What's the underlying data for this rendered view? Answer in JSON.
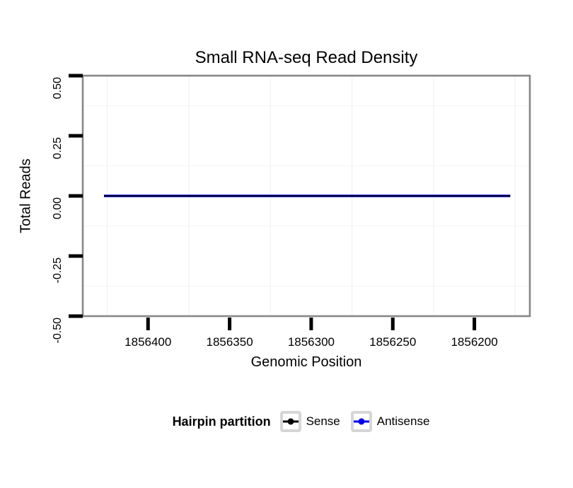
{
  "page": {
    "background": "#ffffff"
  },
  "chart_data": {
    "type": "line",
    "title": "Small RNA-seq Read Density",
    "xlabel": "Genomic Position",
    "ylabel": "Total Reads",
    "x_reversed": true,
    "xlim": [
      1856440,
      1856166
    ],
    "ylim": [
      -0.5,
      0.5
    ],
    "xticks": [
      1856400,
      1856350,
      1856300,
      1856250,
      1856200
    ],
    "xtick_labels": [
      "1856400",
      "1856350",
      "1856300",
      "1856250",
      "1856200"
    ],
    "yticks": [
      0.5,
      0.25,
      0,
      -0.25,
      -0.5
    ],
    "ytick_labels": [
      "0.50",
      "0.25",
      "0.00",
      "-0.25",
      "-0.50"
    ],
    "x_minor_gridlines": [
      1856425,
      1856375,
      1856325,
      1856275,
      1856225,
      1856175
    ],
    "y_minor_gridlines": [
      0.375,
      0.125,
      -0.125,
      -0.375
    ],
    "grid": "minor-only",
    "legend_position": "bottom",
    "series": [
      {
        "name": "Sense",
        "color": "#000000",
        "x_start": 1856427,
        "x_end": 1856178,
        "y_constant": 0
      },
      {
        "name": "Antisense",
        "color": "#0000ee",
        "x_start": 1856427,
        "x_end": 1856178,
        "y_constant": 0
      }
    ],
    "panel_border_color": "#878787",
    "grid_color": "#f4f4f4",
    "tick_color": "#000000",
    "text_color": "#000000"
  },
  "legend": {
    "title": "Hairpin partition",
    "items": [
      {
        "label": "Sense",
        "color": "#000000"
      },
      {
        "label": "Antisense",
        "color": "#0000ee"
      }
    ],
    "key_border_color": "#d6d6d6"
  }
}
